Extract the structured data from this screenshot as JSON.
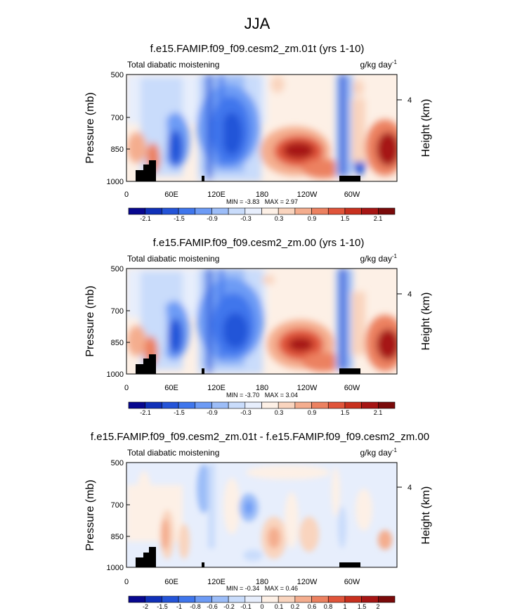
{
  "figure_title": "JJA",
  "colors": {
    "cb1": [
      "#08088f",
      "#1030b8",
      "#2454d8",
      "#3f76ec",
      "#6d9bf5",
      "#9cbdf8",
      "#c9dcfb",
      "#e7eefc",
      "#fdf0e6",
      "#f9d4be",
      "#f4ad8e",
      "#ec8160",
      "#e0543a",
      "#c8301e",
      "#a61514",
      "#7a0a0a"
    ],
    "cb3": [
      "#08088f",
      "#1030b8",
      "#2454d8",
      "#3f76ec",
      "#6d9bf5",
      "#9cbdf8",
      "#c9dcfb",
      "#e7eefc",
      "#fdf0e6",
      "#f9d4be",
      "#f4ad8e",
      "#ec8160",
      "#e0543a",
      "#c8301e",
      "#a61514",
      "#7a0a0a"
    ]
  },
  "chart_data": [
    {
      "type": "heatmap",
      "title": "f.e15.FAMIP.f09_f09.cesm2_zm.01t (yrs 1-10)",
      "left_label": "Total diabatic moistening",
      "units": "g/kg day",
      "units_exp": "-1",
      "ylabel": "Pressure (mb)",
      "y2label": "Height (km)",
      "yticks": [
        "500",
        "700",
        "850",
        "1000"
      ],
      "y2ticks": [
        "4"
      ],
      "xticks": [
        "0",
        "60E",
        "120E",
        "180",
        "120W",
        "60W"
      ],
      "stats": "MIN = -3.83   MAX = 2.97",
      "colorbar_labels": [
        "-2.1",
        "-1.5",
        "-0.9",
        "-0.3",
        "0.3",
        "0.9",
        "1.5",
        "2.1"
      ]
    },
    {
      "type": "heatmap",
      "title": "f.e15.FAMIP.f09_f09.cesm2_zm.00 (yrs 1-10)",
      "left_label": "Total diabatic moistening",
      "units": "g/kg day",
      "units_exp": "-1",
      "ylabel": "Pressure (mb)",
      "y2label": "Height (km)",
      "yticks": [
        "500",
        "700",
        "850",
        "1000"
      ],
      "y2ticks": [
        "4"
      ],
      "xticks": [
        "0",
        "60E",
        "120E",
        "180",
        "120W",
        "60W"
      ],
      "stats": "MIN = -3.70   MAX = 3.04",
      "colorbar_labels": [
        "-2.1",
        "-1.5",
        "-0.9",
        "-0.3",
        "0.3",
        "0.9",
        "1.5",
        "2.1"
      ]
    },
    {
      "type": "heatmap",
      "title": "f.e15.FAMIP.f09_f09.cesm2_zm.01t - f.e15.FAMIP.f09_f09.cesm2_zm.00",
      "left_label": "Total diabatic moistening",
      "units": "g/kg day",
      "units_exp": "-1",
      "ylabel": "Pressure (mb)",
      "y2label": "Height (km)",
      "yticks": [
        "500",
        "700",
        "850",
        "1000"
      ],
      "y2ticks": [
        "4"
      ],
      "xticks": [
        "0",
        "60E",
        "120E",
        "180",
        "120W",
        "60W"
      ],
      "stats": "MIN = -0.34   MAX = 0.46",
      "colorbar_labels": [
        "-2",
        "-1.5",
        "-1",
        "-0.8",
        "-0.6",
        "-0.2",
        "-0.1",
        "0",
        "0.1",
        "0.2",
        "0.6",
        "0.8",
        "1",
        "1.5",
        "2"
      ]
    }
  ]
}
